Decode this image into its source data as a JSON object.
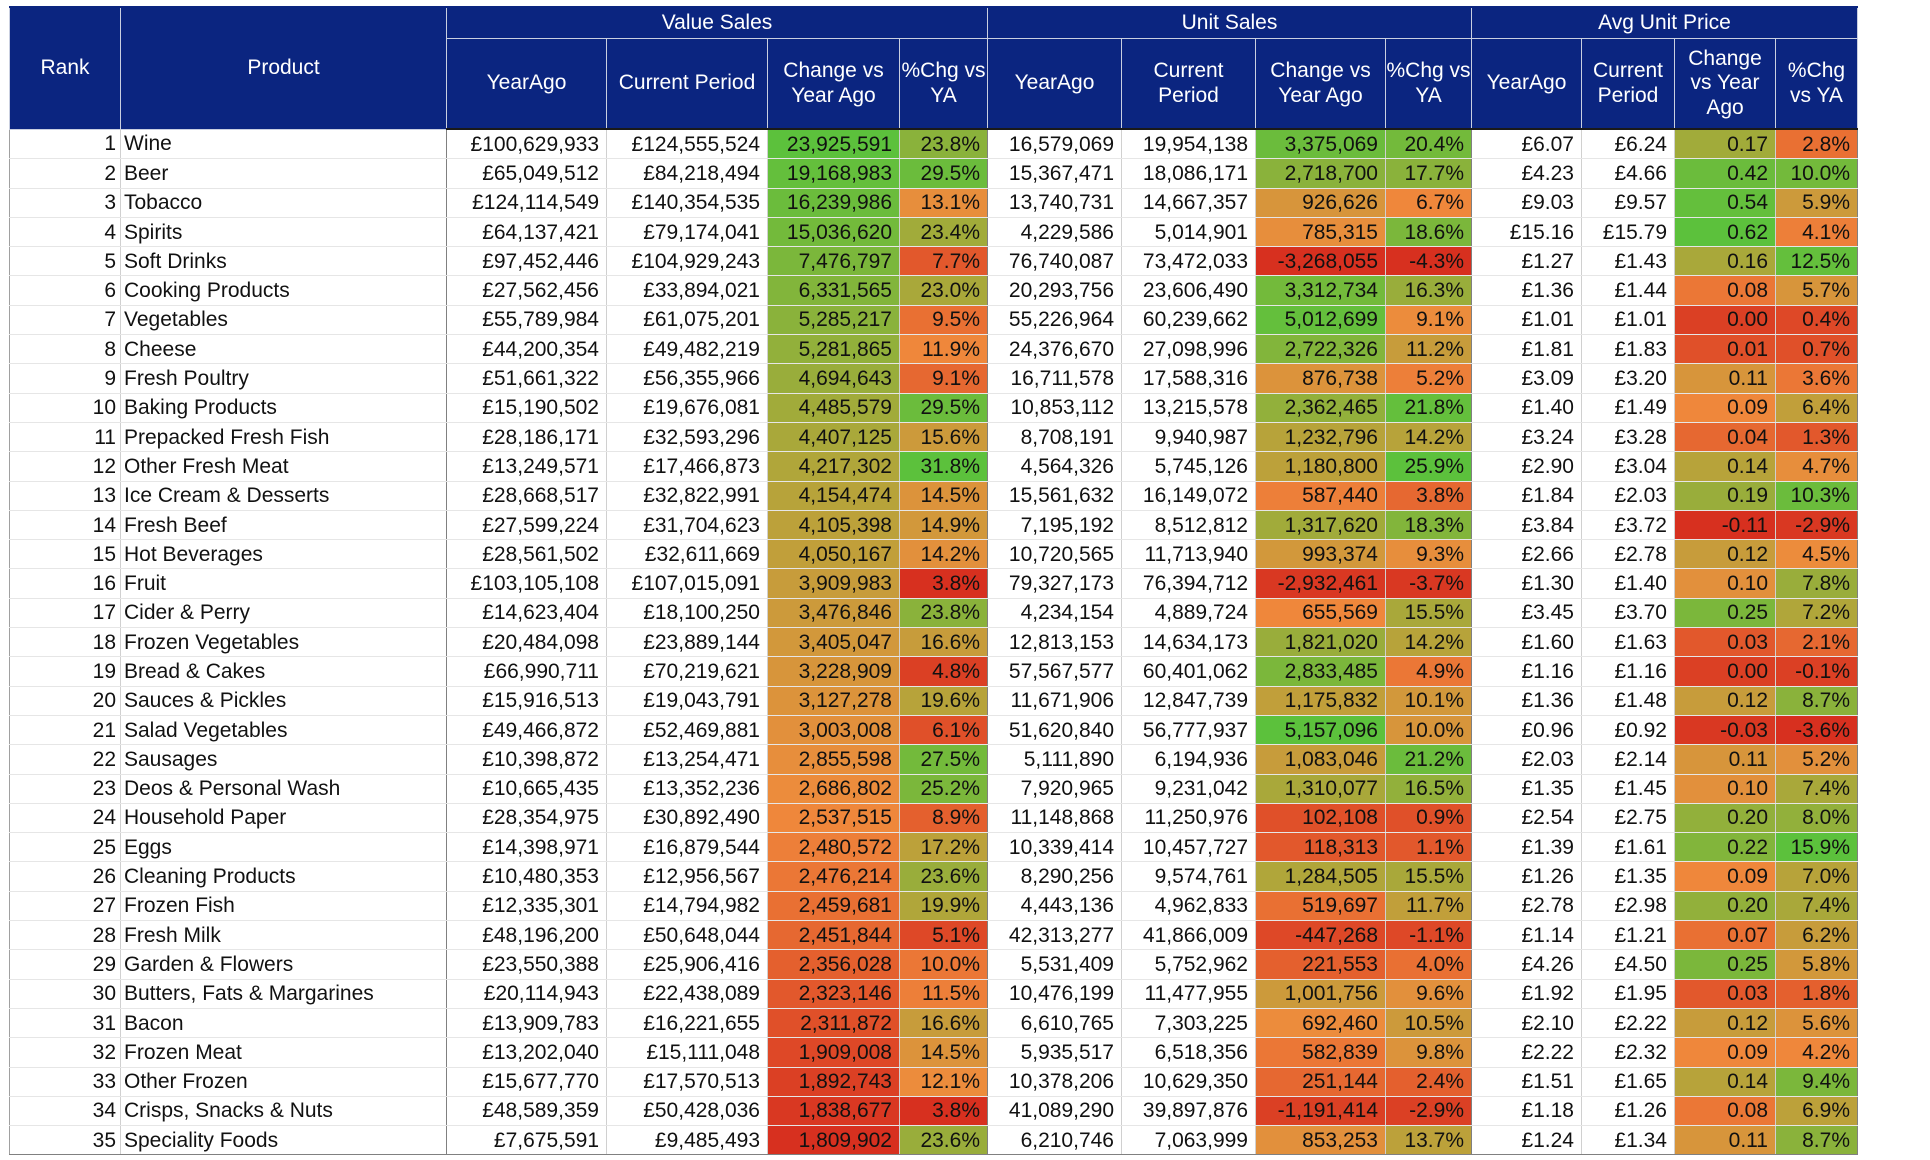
{
  "table": {
    "header": {
      "rank": "Rank",
      "product": "Product",
      "groups": [
        "Value Sales",
        "Unit Sales",
        "Avg Unit Price"
      ],
      "value_cols": [
        "YearAgo",
        "Current Period",
        "Change vs Year Ago",
        "%Chg vs YA"
      ],
      "unit_cols": [
        "YearAgo",
        "Current Period",
        "Change vs Year Ago",
        "%Chg vs YA"
      ],
      "price_cols": [
        "YearAgo",
        "Current Period",
        "Change vs Year Ago",
        "%Chg vs YA"
      ]
    },
    "rows": [
      [
        "1",
        "Wine",
        "£100,629,933",
        "£124,555,524",
        "23,925,591",
        "23.8%",
        "16,579,069",
        "19,954,138",
        "3,375,069",
        "20.4%",
        "£6.07",
        "£6.24",
        "0.17",
        "2.8%"
      ],
      [
        "2",
        "Beer",
        "£65,049,512",
        "£84,218,494",
        "19,168,983",
        "29.5%",
        "15,367,471",
        "18,086,171",
        "2,718,700",
        "17.7%",
        "£4.23",
        "£4.66",
        "0.42",
        "10.0%"
      ],
      [
        "3",
        "Tobacco",
        "£124,114,549",
        "£140,354,535",
        "16,239,986",
        "13.1%",
        "13,740,731",
        "14,667,357",
        "926,626",
        "6.7%",
        "£9.03",
        "£9.57",
        "0.54",
        "5.9%"
      ],
      [
        "4",
        "Spirits",
        "£64,137,421",
        "£79,174,041",
        "15,036,620",
        "23.4%",
        "4,229,586",
        "5,014,901",
        "785,315",
        "18.6%",
        "£15.16",
        "£15.79",
        "0.62",
        "4.1%"
      ],
      [
        "5",
        "Soft Drinks",
        "£97,452,446",
        "£104,929,243",
        "7,476,797",
        "7.7%",
        "76,740,087",
        "73,472,033",
        "-3,268,055",
        "-4.3%",
        "£1.27",
        "£1.43",
        "0.16",
        "12.5%"
      ],
      [
        "6",
        "Cooking Products",
        "£27,562,456",
        "£33,894,021",
        "6,331,565",
        "23.0%",
        "20,293,756",
        "23,606,490",
        "3,312,734",
        "16.3%",
        "£1.36",
        "£1.44",
        "0.08",
        "5.7%"
      ],
      [
        "7",
        "Vegetables",
        "£55,789,984",
        "£61,075,201",
        "5,285,217",
        "9.5%",
        "55,226,964",
        "60,239,662",
        "5,012,699",
        "9.1%",
        "£1.01",
        "£1.01",
        "0.00",
        "0.4%"
      ],
      [
        "8",
        "Cheese",
        "£44,200,354",
        "£49,482,219",
        "5,281,865",
        "11.9%",
        "24,376,670",
        "27,098,996",
        "2,722,326",
        "11.2%",
        "£1.81",
        "£1.83",
        "0.01",
        "0.7%"
      ],
      [
        "9",
        "Fresh Poultry",
        "£51,661,322",
        "£56,355,966",
        "4,694,643",
        "9.1%",
        "16,711,578",
        "17,588,316",
        "876,738",
        "5.2%",
        "£3.09",
        "£3.20",
        "0.11",
        "3.6%"
      ],
      [
        "10",
        "Baking Products",
        "£15,190,502",
        "£19,676,081",
        "4,485,579",
        "29.5%",
        "10,853,112",
        "13,215,578",
        "2,362,465",
        "21.8%",
        "£1.40",
        "£1.49",
        "0.09",
        "6.4%"
      ],
      [
        "11",
        "Prepacked Fresh Fish",
        "£28,186,171",
        "£32,593,296",
        "4,407,125",
        "15.6%",
        "8,708,191",
        "9,940,987",
        "1,232,796",
        "14.2%",
        "£3.24",
        "£3.28",
        "0.04",
        "1.3%"
      ],
      [
        "12",
        "Other Fresh Meat",
        "£13,249,571",
        "£17,466,873",
        "4,217,302",
        "31.8%",
        "4,564,326",
        "5,745,126",
        "1,180,800",
        "25.9%",
        "£2.90",
        "£3.04",
        "0.14",
        "4.7%"
      ],
      [
        "13",
        "Ice Cream & Desserts",
        "£28,668,517",
        "£32,822,991",
        "4,154,474",
        "14.5%",
        "15,561,632",
        "16,149,072",
        "587,440",
        "3.8%",
        "£1.84",
        "£2.03",
        "0.19",
        "10.3%"
      ],
      [
        "14",
        "Fresh Beef",
        "£27,599,224",
        "£31,704,623",
        "4,105,398",
        "14.9%",
        "7,195,192",
        "8,512,812",
        "1,317,620",
        "18.3%",
        "£3.84",
        "£3.72",
        "-0.11",
        "-2.9%"
      ],
      [
        "15",
        "Hot Beverages",
        "£28,561,502",
        "£32,611,669",
        "4,050,167",
        "14.2%",
        "10,720,565",
        "11,713,940",
        "993,374",
        "9.3%",
        "£2.66",
        "£2.78",
        "0.12",
        "4.5%"
      ],
      [
        "16",
        "Fruit",
        "£103,105,108",
        "£107,015,091",
        "3,909,983",
        "3.8%",
        "79,327,173",
        "76,394,712",
        "-2,932,461",
        "-3.7%",
        "£1.30",
        "£1.40",
        "0.10",
        "7.8%"
      ],
      [
        "17",
        "Cider & Perry",
        "£14,623,404",
        "£18,100,250",
        "3,476,846",
        "23.8%",
        "4,234,154",
        "4,889,724",
        "655,569",
        "15.5%",
        "£3.45",
        "£3.70",
        "0.25",
        "7.2%"
      ],
      [
        "18",
        "Frozen Vegetables",
        "£20,484,098",
        "£23,889,144",
        "3,405,047",
        "16.6%",
        "12,813,153",
        "14,634,173",
        "1,821,020",
        "14.2%",
        "£1.60",
        "£1.63",
        "0.03",
        "2.1%"
      ],
      [
        "19",
        "Bread & Cakes",
        "£66,990,711",
        "£70,219,621",
        "3,228,909",
        "4.8%",
        "57,567,577",
        "60,401,062",
        "2,833,485",
        "4.9%",
        "£1.16",
        "£1.16",
        "0.00",
        "-0.1%"
      ],
      [
        "20",
        "Sauces & Pickles",
        "£15,916,513",
        "£19,043,791",
        "3,127,278",
        "19.6%",
        "11,671,906",
        "12,847,739",
        "1,175,832",
        "10.1%",
        "£1.36",
        "£1.48",
        "0.12",
        "8.7%"
      ],
      [
        "21",
        "Salad Vegetables",
        "£49,466,872",
        "£52,469,881",
        "3,003,008",
        "6.1%",
        "51,620,840",
        "56,777,937",
        "5,157,096",
        "10.0%",
        "£0.96",
        "£0.92",
        "-0.03",
        "-3.6%"
      ],
      [
        "22",
        "Sausages",
        "£10,398,872",
        "£13,254,471",
        "2,855,598",
        "27.5%",
        "5,111,890",
        "6,194,936",
        "1,083,046",
        "21.2%",
        "£2.03",
        "£2.14",
        "0.11",
        "5.2%"
      ],
      [
        "23",
        "Deos & Personal Wash",
        "£10,665,435",
        "£13,352,236",
        "2,686,802",
        "25.2%",
        "7,920,965",
        "9,231,042",
        "1,310,077",
        "16.5%",
        "£1.35",
        "£1.45",
        "0.10",
        "7.4%"
      ],
      [
        "24",
        "Household Paper",
        "£28,354,975",
        "£30,892,490",
        "2,537,515",
        "8.9%",
        "11,148,868",
        "11,250,976",
        "102,108",
        "0.9%",
        "£2.54",
        "£2.75",
        "0.20",
        "8.0%"
      ],
      [
        "25",
        "Eggs",
        "£14,398,971",
        "£16,879,544",
        "2,480,572",
        "17.2%",
        "10,339,414",
        "10,457,727",
        "118,313",
        "1.1%",
        "£1.39",
        "£1.61",
        "0.22",
        "15.9%"
      ],
      [
        "26",
        "Cleaning Products",
        "£10,480,353",
        "£12,956,567",
        "2,476,214",
        "23.6%",
        "8,290,256",
        "9,574,761",
        "1,284,505",
        "15.5%",
        "£1.26",
        "£1.35",
        "0.09",
        "7.0%"
      ],
      [
        "27",
        "Frozen Fish",
        "£12,335,301",
        "£14,794,982",
        "2,459,681",
        "19.9%",
        "4,443,136",
        "4,962,833",
        "519,697",
        "11.7%",
        "£2.78",
        "£2.98",
        "0.20",
        "7.4%"
      ],
      [
        "28",
        "Fresh Milk",
        "£48,196,200",
        "£50,648,044",
        "2,451,844",
        "5.1%",
        "42,313,277",
        "41,866,009",
        "-447,268",
        "-1.1%",
        "£1.14",
        "£1.21",
        "0.07",
        "6.2%"
      ],
      [
        "29",
        "Garden & Flowers",
        "£23,550,388",
        "£25,906,416",
        "2,356,028",
        "10.0%",
        "5,531,409",
        "5,752,962",
        "221,553",
        "4.0%",
        "£4.26",
        "£4.50",
        "0.25",
        "5.8%"
      ],
      [
        "30",
        "Butters, Fats & Margarines",
        "£20,114,943",
        "£22,438,089",
        "2,323,146",
        "11.5%",
        "10,476,199",
        "11,477,955",
        "1,001,756",
        "9.6%",
        "£1.92",
        "£1.95",
        "0.03",
        "1.8%"
      ],
      [
        "31",
        "Bacon",
        "£13,909,783",
        "£16,221,655",
        "2,311,872",
        "16.6%",
        "6,610,765",
        "7,303,225",
        "692,460",
        "10.5%",
        "£2.10",
        "£2.22",
        "0.12",
        "5.6%"
      ],
      [
        "32",
        "Frozen Meat",
        "£13,202,040",
        "£15,111,048",
        "1,909,008",
        "14.5%",
        "5,935,517",
        "6,518,356",
        "582,839",
        "9.8%",
        "£2.22",
        "£2.32",
        "0.09",
        "4.2%"
      ],
      [
        "33",
        "Other Frozen",
        "£15,677,770",
        "£17,570,513",
        "1,892,743",
        "12.1%",
        "10,378,206",
        "10,629,350",
        "251,144",
        "2.4%",
        "£1.51",
        "£1.65",
        "0.14",
        "9.4%"
      ],
      [
        "34",
        "Crisps, Snacks & Nuts",
        "£48,589,359",
        "£50,428,036",
        "1,838,677",
        "3.8%",
        "41,089,290",
        "39,897,876",
        "-1,191,414",
        "-2.9%",
        "£1.18",
        "£1.26",
        "0.08",
        "6.9%"
      ],
      [
        "35",
        "Speciality Foods",
        "£7,675,591",
        "£9,485,493",
        "1,809,902",
        "23.6%",
        "6,210,746",
        "7,063,999",
        "853,253",
        "13.7%",
        "£1.24",
        "£1.34",
        "0.11",
        "8.7%"
      ]
    ]
  },
  "colors": {
    "header_bg": "#0b2580",
    "header_text": "#ffffff",
    "scale_low": "#d7301f",
    "scale_mid_low": "#f08a3c",
    "scale_mid": "#b3a53a",
    "scale_high": "#5cc13c"
  }
}
